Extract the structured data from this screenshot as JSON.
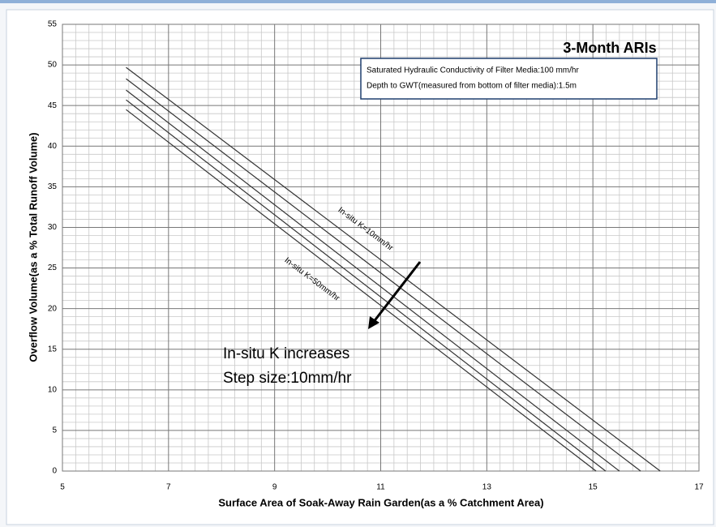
{
  "chart_data": {
    "type": "line",
    "title": "3-Month ARIs",
    "x_label": "Surface Area of Soak-Away Rain Garden(as a %  Catchment Area)",
    "y_label": "Overflow Volume(as a % Total Runoff Volume)",
    "xlim": [
      5,
      17
    ],
    "xticks": [
      5,
      7,
      9,
      11,
      13,
      15,
      17
    ],
    "ylim": [
      0,
      55
    ],
    "yticks": [
      0,
      5,
      10,
      15,
      20,
      25,
      30,
      35,
      40,
      45,
      50,
      55
    ],
    "grid": true,
    "series": [
      {
        "color": "#333333",
        "x": [
          6.2,
          16.27
        ],
        "values": [
          49.7,
          0
        ]
      },
      {
        "color": "#333333",
        "x": [
          6.2,
          15.9
        ],
        "values": [
          48.3,
          0
        ]
      },
      {
        "color": "#333333",
        "x": [
          6.2,
          15.5
        ],
        "values": [
          46.9,
          0
        ]
      },
      {
        "color": "#333333",
        "x": [
          6.2,
          15.24
        ],
        "values": [
          45.7,
          0
        ]
      },
      {
        "color": "#333333",
        "x": [
          6.2,
          15.06
        ],
        "values": [
          44.5,
          0
        ]
      }
    ],
    "annotations": {
      "info_box": [
        "Saturated Hydraulic Conductivity  of Filter Media:100 mm/hr",
        "Depth to GWT(measured from bottom of filter media):1.5m"
      ],
      "line_label_top": "In-situ K=10mm/hr",
      "line_label_bottom": "In-situ K=50mm/hr",
      "trend": [
        "In-situ K increases",
        "Step size:10mm/hr"
      ]
    }
  }
}
